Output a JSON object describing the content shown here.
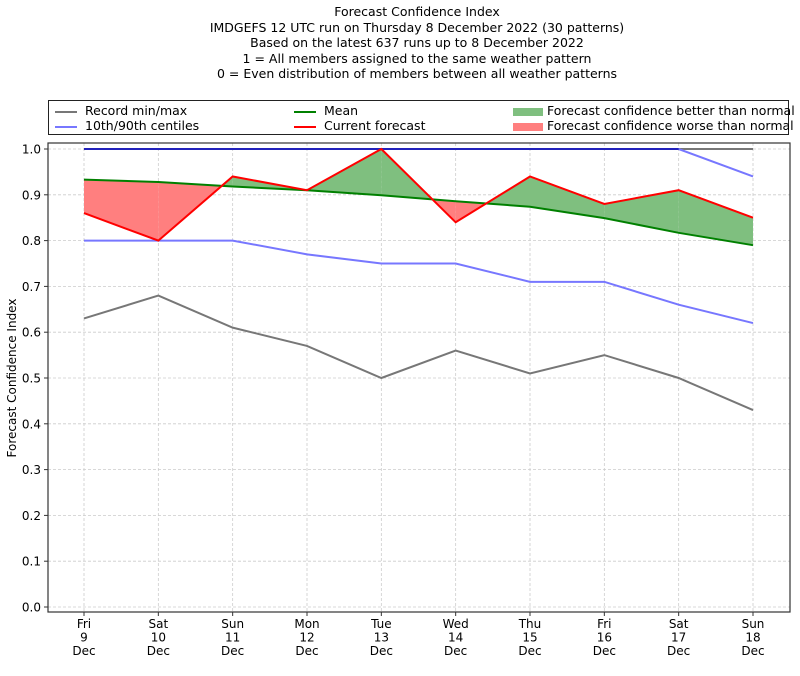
{
  "title_lines": [
    "Forecast Confidence Index",
    "IMDGEFS 12 UTC run on Thursday 8 December 2022 (30 patterns)",
    "Based on the latest 637 runs up to 8 December 2022",
    "1 = All members assigned to the same weather pattern",
    "0 = Even distribution of members between all weather patterns"
  ],
  "legend": {
    "record": "Record min/max",
    "centiles": "10th/90th centiles",
    "mean": "Mean",
    "current": "Current forecast",
    "better": "Forecast confidence better than normal",
    "worse": "Forecast confidence worse than normal"
  },
  "colors": {
    "record": "#777777",
    "centiles": "#7777ff",
    "centile_overlap": "#2222bb",
    "mean": "#008000",
    "current": "#ff0000",
    "better_fill": "#7fbf7f",
    "worse_fill": "#ff7f7f"
  },
  "chart_data": {
    "type": "line",
    "title": "Forecast Confidence Index",
    "xlabel": "",
    "ylabel": "Forecast Confidence Index",
    "ylim": [
      0,
      1
    ],
    "yticks": [
      "0.0",
      "0.1",
      "0.2",
      "0.3",
      "0.4",
      "0.5",
      "0.6",
      "0.7",
      "0.8",
      "0.9",
      "1.0"
    ],
    "grid": true,
    "legend_position": "top, above plot",
    "categories": [
      [
        "Fri",
        "9",
        "Dec"
      ],
      [
        "Sat",
        "10",
        "Dec"
      ],
      [
        "Sun",
        "11",
        "Dec"
      ],
      [
        "Mon",
        "12",
        "Dec"
      ],
      [
        "Tue",
        "13",
        "Dec"
      ],
      [
        "Wed",
        "14",
        "Dec"
      ],
      [
        "Thu",
        "15",
        "Dec"
      ],
      [
        "Fri",
        "16",
        "Dec"
      ],
      [
        "Sat",
        "17",
        "Dec"
      ],
      [
        "Sun",
        "18",
        "Dec"
      ]
    ],
    "series": [
      {
        "name": "Record max",
        "key": "record",
        "values": [
          1.0,
          1.0,
          1.0,
          1.0,
          1.0,
          1.0,
          1.0,
          1.0,
          1.0,
          1.0
        ]
      },
      {
        "name": "Record min",
        "key": "record",
        "values": [
          0.63,
          0.68,
          0.61,
          0.57,
          0.5,
          0.56,
          0.51,
          0.55,
          0.5,
          0.43
        ]
      },
      {
        "name": "90th centile",
        "key": "centiles",
        "values": [
          1.0,
          1.0,
          1.0,
          1.0,
          1.0,
          1.0,
          1.0,
          1.0,
          1.0,
          0.94
        ]
      },
      {
        "name": "10th centile",
        "key": "centiles",
        "values": [
          0.8,
          0.8,
          0.8,
          0.77,
          0.75,
          0.75,
          0.71,
          0.71,
          0.66,
          0.62
        ]
      },
      {
        "name": "Mean",
        "key": "mean",
        "values": [
          0.933,
          0.928,
          0.918,
          0.91,
          0.899,
          0.886,
          0.874,
          0.849,
          0.817,
          0.79
        ]
      },
      {
        "name": "Current forecast",
        "key": "current",
        "values": [
          0.86,
          0.8,
          0.94,
          0.91,
          1.0,
          0.84,
          0.94,
          0.88,
          0.91,
          0.85
        ]
      }
    ]
  }
}
